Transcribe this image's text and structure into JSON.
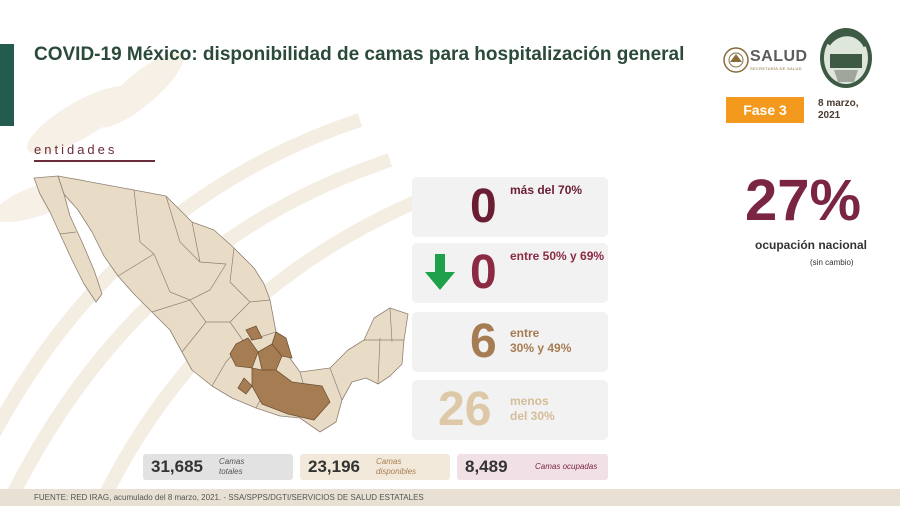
{
  "header": {
    "title": "COVID-19 México: disponibilidad de camas para hospitalización general",
    "logo_text": "SALUD",
    "logo_sub": "SECRETARÍA DE SALUD",
    "phase_label": "Fase 3",
    "date_line1": "8 marzo,",
    "date_line2": "2021"
  },
  "map_section": {
    "label": "entidades"
  },
  "categories": [
    {
      "count": "0",
      "label_line1": "más del 70%",
      "label_line2": "",
      "color": "#6b1e33"
    },
    {
      "count": "0",
      "label_line1": "entre 50% y 69%",
      "label_line2": "",
      "color": "#8c2a44"
    },
    {
      "count": "6",
      "label_line1": "entre",
      "label_line2": "30% y 49%",
      "color": "#a67c52"
    },
    {
      "count": "26",
      "label_line1": "menos",
      "label_line2": "del 30%",
      "color": "#ddc9a8"
    }
  ],
  "trend_icon": "arrow-down-icon",
  "national": {
    "percent": "27%",
    "label": "ocupación nacional",
    "note": "(sin cambio)"
  },
  "beds": {
    "total_value": "31,685",
    "total_label_1": "Camas",
    "total_label_2": "totales",
    "available_value": "23,196",
    "available_label_1": "Camas",
    "available_label_2": "disponibles",
    "occupied_value": "8,489",
    "occupied_label": "Camas ocupadas"
  },
  "footer": {
    "source": "FUENTE: RED IRAG, acumulado del 8 marzo, 2021.  -  SSA/SPPS/DGTI/SERVICIOS DE SALUD ESTATALES"
  },
  "colors": {
    "brand_green": "#235b4e",
    "wine": "#7b2545",
    "phase_orange": "#f39a1e",
    "map_fill": "#e9dcc6",
    "map_highlight": "#a67c52",
    "trend_green": "#1fa04a"
  }
}
